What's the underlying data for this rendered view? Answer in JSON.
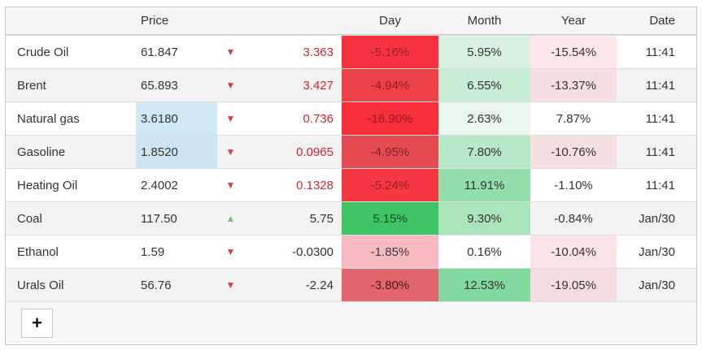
{
  "table": {
    "headers": {
      "name": "",
      "price": "Price",
      "day": "Day",
      "month": "Month",
      "year": "Year",
      "date": "Date"
    },
    "arrow_colors": {
      "down": "#d64045",
      "up": "#72c275"
    },
    "rows": [
      {
        "name": "Crude Oil",
        "price": "61.847",
        "price_bg": "",
        "arrow": {
          "glyph": "▼",
          "color": "#d64045",
          "dir": "down"
        },
        "change": {
          "text": "3.363",
          "color": "#c9262e"
        },
        "day": {
          "text": "-5.16%",
          "bg": "#f5323e",
          "fg": "#9a1f28"
        },
        "month": {
          "text": "5.95%",
          "bg": "#d8f1e0",
          "fg": "#333333"
        },
        "year": {
          "text": "-15.54%",
          "bg": "#fce7e9",
          "fg": "#333333"
        },
        "date": "11:41"
      },
      {
        "name": "Brent",
        "price": "65.893",
        "price_bg": "",
        "arrow": {
          "glyph": "▼",
          "color": "#d64045",
          "dir": "down"
        },
        "change": {
          "text": "3.427",
          "color": "#c9262e"
        },
        "day": {
          "text": "-4.94%",
          "bg": "#ee4049",
          "fg": "#8d2027"
        },
        "month": {
          "text": "6.55%",
          "bg": "#c7edd4",
          "fg": "#333333"
        },
        "year": {
          "text": "-13.37%",
          "bg": "#f6dfe1",
          "fg": "#333333"
        },
        "date": "11:41"
      },
      {
        "name": "Natural gas",
        "price": "3.6180",
        "price_bg": "#cfe8f4",
        "arrow": {
          "glyph": "▼",
          "color": "#d64045",
          "dir": "down"
        },
        "change": {
          "text": "0.736",
          "color": "#c9262e"
        },
        "day": {
          "text": "-16.90%",
          "bg": "#f62e3a",
          "fg": "#9a1c25"
        },
        "month": {
          "text": "2.63%",
          "bg": "#eaf7ef",
          "fg": "#333333"
        },
        "year": {
          "text": "7.87%",
          "bg": "#ffffff",
          "fg": "#333333"
        },
        "date": "11:41"
      },
      {
        "name": "Gasoline",
        "price": "1.8520",
        "price_bg": "#cde5f0",
        "arrow": {
          "glyph": "▼",
          "color": "#d64045",
          "dir": "down"
        },
        "change": {
          "text": "0.0965",
          "color": "#c9262e"
        },
        "day": {
          "text": "-4.95%",
          "bg": "#e74b52",
          "fg": "#7e2026"
        },
        "month": {
          "text": "7.80%",
          "bg": "#b7e8c8",
          "fg": "#333333"
        },
        "year": {
          "text": "-10.76%",
          "bg": "#f4dfe1",
          "fg": "#333333"
        },
        "date": "11:41"
      },
      {
        "name": "Heating Oil",
        "price": "2.4002",
        "price_bg": "",
        "arrow": {
          "glyph": "▼",
          "color": "#d64045",
          "dir": "down"
        },
        "change": {
          "text": "0.1328",
          "color": "#c9262e"
        },
        "day": {
          "text": "-5.24%",
          "bg": "#f53741",
          "fg": "#9a1f28"
        },
        "month": {
          "text": "11.91%",
          "bg": "#92dfac",
          "fg": "#333333"
        },
        "year": {
          "text": "-1.10%",
          "bg": "#ffffff",
          "fg": "#333333"
        },
        "date": "11:41"
      },
      {
        "name": "Coal",
        "price": "117.50",
        "price_bg": "",
        "arrow": {
          "glyph": "▲",
          "color": "#72c275",
          "dir": "up"
        },
        "change": {
          "text": "5.75",
          "color": "#333333"
        },
        "day": {
          "text": "5.15%",
          "bg": "#3ec465",
          "fg": "#14522d"
        },
        "month": {
          "text": "9.30%",
          "bg": "#a9e4bb",
          "fg": "#333333"
        },
        "year": {
          "text": "-0.84%",
          "bg": "",
          "fg": "#333333"
        },
        "date": "Jan/30"
      },
      {
        "name": "Ethanol",
        "price": "1.59",
        "price_bg": "",
        "arrow": {
          "glyph": "▼",
          "color": "#d64045",
          "dir": "down"
        },
        "change": {
          "text": "-0.0300",
          "color": "#333333"
        },
        "day": {
          "text": "-1.85%",
          "bg": "#f7bac0",
          "fg": "#3c3c3c"
        },
        "month": {
          "text": "0.16%",
          "bg": "#ffffff",
          "fg": "#333333"
        },
        "year": {
          "text": "-10.04%",
          "bg": "#fbe4e6",
          "fg": "#333333"
        },
        "date": "Jan/30"
      },
      {
        "name": "Urals Oil",
        "price": "56.76",
        "price_bg": "",
        "arrow": {
          "glyph": "▼",
          "color": "#d64045",
          "dir": "down"
        },
        "change": {
          "text": "-2.24",
          "color": "#333333"
        },
        "day": {
          "text": "-3.80%",
          "bg": "#e2646c",
          "fg": "#491a1e"
        },
        "month": {
          "text": "12.53%",
          "bg": "#82d99e",
          "fg": "#333333"
        },
        "year": {
          "text": "-19.05%",
          "bg": "#f5dddf",
          "fg": "#333333"
        },
        "date": "Jan/30"
      }
    ]
  },
  "footer": {
    "add_button_label": "+"
  }
}
